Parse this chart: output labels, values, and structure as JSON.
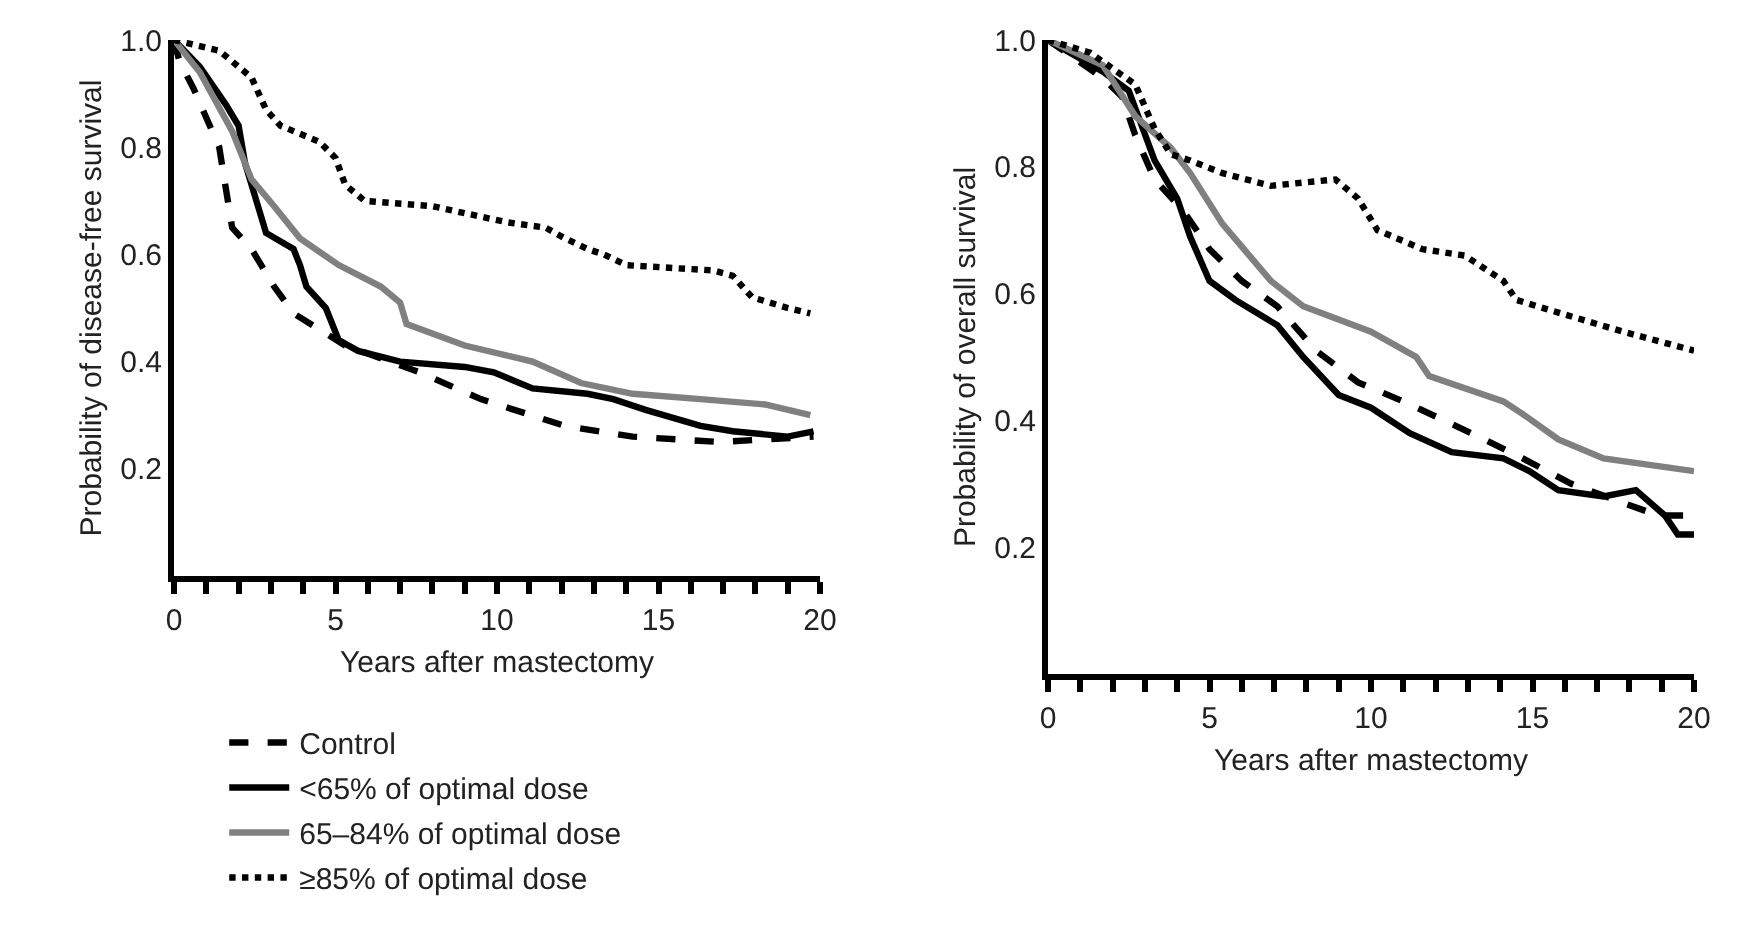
{
  "chart_data": [
    {
      "type": "line",
      "xlabel": "Years after mastectomy",
      "ylabel": "Probability of disease-free survival",
      "xlim": [
        0,
        20
      ],
      "ylim": [
        0,
        1
      ],
      "xticks": [
        0,
        {
          "value": 1,
          "label": null
        },
        {
          "value": 2,
          "label": null
        },
        {
          "value": 3,
          "label": null
        },
        {
          "value": 4,
          "label": null
        },
        5,
        {
          "value": 6,
          "label": null
        },
        {
          "value": 7,
          "label": null
        },
        {
          "value": 8,
          "label": null
        },
        {
          "value": 9,
          "label": null
        },
        10,
        {
          "value": 11,
          "label": null
        },
        {
          "value": 12,
          "label": null
        },
        {
          "value": 13,
          "label": null
        },
        {
          "value": 14,
          "label": null
        },
        15,
        {
          "value": 16,
          "label": null
        },
        {
          "value": 17,
          "label": null
        },
        {
          "value": 18,
          "label": null
        },
        {
          "value": 19,
          "label": null
        },
        20
      ],
      "yticks": [
        0.2,
        0.4,
        0.6,
        0.8,
        {
          "value": 1,
          "label": "1.0"
        }
      ],
      "grid": false,
      "legend": "bottom",
      "marker": "none",
      "series": [
        {
          "name": "Control",
          "color": "#000000",
          "line_style": "dashed",
          "x": [
            0,
            0.17,
            0.6,
            1.4,
            1.8,
            2.4,
            3.1,
            3.7,
            4.5,
            5.3,
            7.6,
            9.5,
            12.1,
            14.2,
            16.9,
            19.8
          ],
          "values": [
            1,
            0.96,
            0.91,
            0.8,
            0.65,
            0.61,
            0.54,
            0.49,
            0.46,
            0.43,
            0.38,
            0.33,
            0.28,
            0.26,
            0.25,
            0.26
          ]
        },
        {
          "name": "<65% of optimal dose",
          "color": "#000000",
          "line_style": "solid",
          "x": [
            0,
            0.8,
            1.6,
            2,
            2.2,
            2.6,
            2.85,
            3.7,
            3.9,
            4.1,
            4.7,
            5.1,
            5.7,
            7,
            9,
            9.9,
            11.1,
            12.8,
            13.6,
            14.6,
            16.3,
            17.3,
            19,
            19.8
          ],
          "values": [
            1,
            0.95,
            0.88,
            0.84,
            0.77,
            0.69,
            0.64,
            0.61,
            0.58,
            0.54,
            0.5,
            0.44,
            0.42,
            0.4,
            0.39,
            0.38,
            0.35,
            0.34,
            0.33,
            0.31,
            0.28,
            0.27,
            0.26,
            0.27
          ]
        },
        {
          "name": "65–84% of optimal dose",
          "color": "#808080",
          "line_style": "solid",
          "x": [
            0,
            0.8,
            1.8,
            2.4,
            3.1,
            3.9,
            5.1,
            6.4,
            7,
            7.2,
            9,
            11.1,
            12.6,
            14.2,
            16.3,
            18.3,
            19.7
          ],
          "values": [
            1,
            0.94,
            0.83,
            0.74,
            0.69,
            0.63,
            0.58,
            0.54,
            0.51,
            0.47,
            0.43,
            0.4,
            0.36,
            0.34,
            0.33,
            0.32,
            0.3
          ]
        },
        {
          "name": "≥85% of optimal dose",
          "color": "#000000",
          "line_style": "dotted",
          "x": [
            0,
            1.4,
            2.4,
            2.85,
            3.3,
            4.5,
            5,
            5.3,
            5.9,
            8,
            10.3,
            11.5,
            12.1,
            12.8,
            13.3,
            14,
            16.7,
            17.3,
            17.9,
            19,
            19.7
          ],
          "values": [
            1,
            0.98,
            0.93,
            0.87,
            0.84,
            0.81,
            0.78,
            0.73,
            0.7,
            0.69,
            0.66,
            0.65,
            0.63,
            0.61,
            0.6,
            0.58,
            0.57,
            0.56,
            0.52,
            0.5,
            0.49
          ]
        }
      ]
    },
    {
      "type": "line",
      "xlabel": "Years after mastectomy",
      "ylabel": "Probability of overall survival",
      "xlim": [
        0,
        20
      ],
      "ylim": [
        0,
        1
      ],
      "xticks": [
        0,
        {
          "value": 1,
          "label": null
        },
        {
          "value": 2,
          "label": null
        },
        {
          "value": 3,
          "label": null
        },
        {
          "value": 4,
          "label": null
        },
        5,
        {
          "value": 6,
          "label": null
        },
        {
          "value": 7,
          "label": null
        },
        {
          "value": 8,
          "label": null
        },
        {
          "value": 9,
          "label": null
        },
        10,
        {
          "value": 11,
          "label": null
        },
        {
          "value": 12,
          "label": null
        },
        {
          "value": 13,
          "label": null
        },
        {
          "value": 14,
          "label": null
        },
        15,
        {
          "value": 16,
          "label": null
        },
        {
          "value": 17,
          "label": null
        },
        {
          "value": 18,
          "label": null
        },
        {
          "value": 19,
          "label": null
        },
        20
      ],
      "yticks": [
        0.2,
        0.4,
        0.6,
        0.8,
        {
          "value": 1,
          "label": "1.0"
        }
      ],
      "grid": false,
      "marker": "none",
      "series": [
        {
          "color": "#000000",
          "line_style": "dashed",
          "x": [
            0,
            1.7,
            2.3,
            2.7,
            3.3,
            4.2,
            5,
            6,
            7.1,
            8.3,
            9.6,
            11,
            13.1,
            14.7,
            16.2,
            17.8,
            18.9,
            20
          ],
          "values": [
            1,
            0.94,
            0.91,
            0.85,
            0.78,
            0.73,
            0.67,
            0.62,
            0.58,
            0.51,
            0.46,
            0.43,
            0.38,
            0.34,
            0.3,
            0.27,
            0.25,
            0.25
          ]
        },
        {
          "color": "#000000",
          "line_style": "solid",
          "x": [
            0,
            1.7,
            2.5,
            3.3,
            4,
            4.4,
            5,
            5.8,
            7.1,
            7.9,
            9,
            10,
            11.2,
            12.5,
            14.1,
            14.9,
            15.8,
            17.2,
            18.2,
            19.1,
            19.5,
            20
          ],
          "values": [
            1,
            0.95,
            0.92,
            0.81,
            0.75,
            0.69,
            0.62,
            0.59,
            0.55,
            0.5,
            0.44,
            0.42,
            0.38,
            0.35,
            0.34,
            0.32,
            0.29,
            0.28,
            0.29,
            0.25,
            0.22,
            0.22
          ]
        },
        {
          "color": "#808080",
          "line_style": "solid",
          "x": [
            0,
            1.7,
            2.7,
            3.8,
            4.4,
            5.4,
            6.9,
            7.9,
            10,
            11.4,
            11.8,
            14.1,
            14.7,
            15.8,
            17.2,
            20
          ],
          "values": [
            1,
            0.96,
            0.88,
            0.83,
            0.79,
            0.71,
            0.62,
            0.58,
            0.54,
            0.5,
            0.47,
            0.43,
            0.41,
            0.37,
            0.34,
            0.32
          ]
        },
        {
          "color": "#000000",
          "line_style": "dotted",
          "x": [
            0,
            1.3,
            2.7,
            3.3,
            3.8,
            4.4,
            5.4,
            6.9,
            8.9,
            9.6,
            10.2,
            11.6,
            12.9,
            13.5,
            14.1,
            14.5,
            15.8,
            17.8,
            20
          ],
          "values": [
            1,
            0.98,
            0.93,
            0.86,
            0.82,
            0.81,
            0.79,
            0.77,
            0.78,
            0.75,
            0.7,
            0.67,
            0.66,
            0.64,
            0.62,
            0.59,
            0.57,
            0.54,
            0.51
          ]
        }
      ]
    }
  ]
}
